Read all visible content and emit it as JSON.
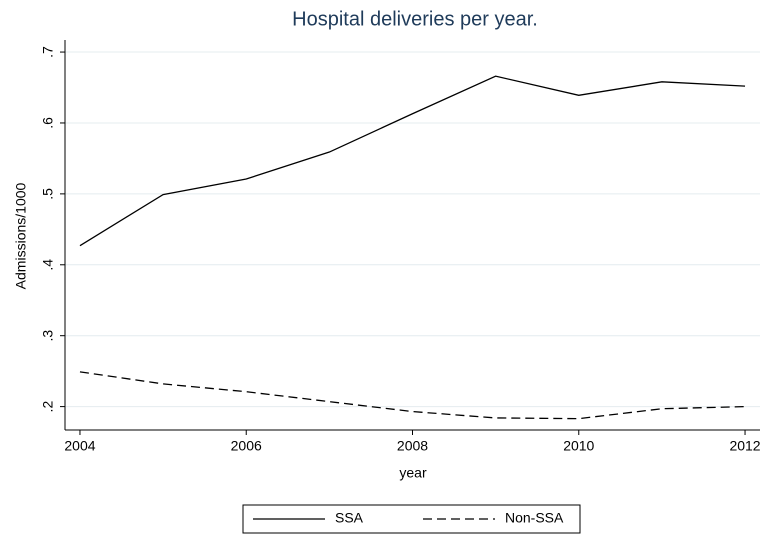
{
  "chart_data": {
    "type": "line",
    "title": "Hospital deliveries per year.",
    "x_label": "year",
    "y_label": "Admissions/1000",
    "x": [
      2004,
      2005,
      2006,
      2007,
      2008,
      2009,
      2010,
      2011,
      2012
    ],
    "series": [
      {
        "name": "SSA",
        "color": "#000000",
        "dash": "solid",
        "values": [
          0.427,
          0.499,
          0.521,
          0.559,
          0.613,
          0.666,
          0.639,
          0.658,
          0.652
        ]
      },
      {
        "name": "Non-SSA",
        "color": "#000000",
        "dash": "dashed",
        "values": [
          0.249,
          0.232,
          0.221,
          0.207,
          0.193,
          0.184,
          0.183,
          0.197,
          0.2
        ]
      }
    ],
    "xlim": [
      2003.82,
      2012.18
    ],
    "xticks": [
      2004,
      2006,
      2008,
      2010,
      2012
    ],
    "ylim": [
      0.167,
      0.717
    ],
    "yticks": [
      {
        "value": 0.2,
        "label": ".2"
      },
      {
        "value": 0.3,
        "label": ".3"
      },
      {
        "value": 0.4,
        "label": ".4"
      },
      {
        "value": 0.5,
        "label": ".5"
      },
      {
        "value": 0.6,
        "label": ".6"
      },
      {
        "value": 0.7,
        "label": ".7"
      }
    ],
    "grid": true,
    "legend": "bottom"
  }
}
